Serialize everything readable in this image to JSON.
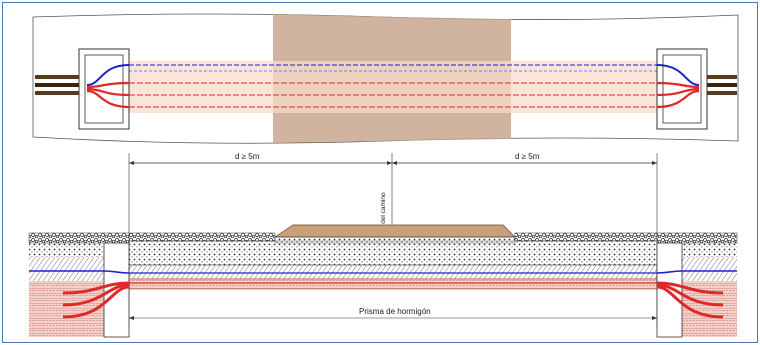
{
  "labels": {
    "distance_left": "d ≥ 5m",
    "distance_right": "d ≥ 5m",
    "road_axis": "Eje del camino",
    "concrete_prism": "Prisma de hormigón"
  },
  "colors": {
    "frame_border": "#4a7ab5",
    "road_band": "#c8a78f",
    "prism_fill": "#f8dccb",
    "blue_conduit": "#2020d0",
    "red_conduit": "#e02828",
    "cable_brown": "#5a3a1e",
    "asphalt_hump": "#c8a07a"
  }
}
